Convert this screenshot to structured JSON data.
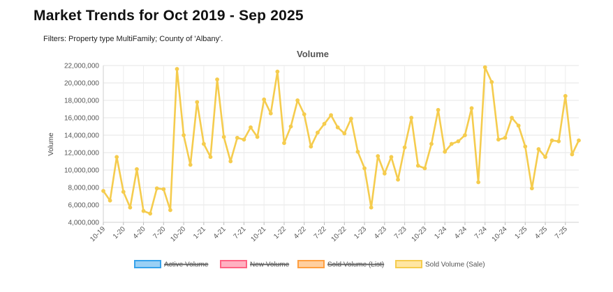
{
  "header": {
    "title": "Market Trends for Oct 2019 - Sep 2025",
    "filters": "Filters: Property type MultiFamily; County of 'Albany'."
  },
  "chart_data": {
    "type": "line",
    "title": "Volume",
    "xlabel": "",
    "ylabel": "Volume",
    "ylim": [
      4000000,
      22000000
    ],
    "yticks": [
      4000000,
      6000000,
      8000000,
      10000000,
      12000000,
      14000000,
      16000000,
      18000000,
      20000000,
      22000000
    ],
    "ytick_labels": [
      "4,000,000",
      "6,000,000",
      "8,000,000",
      "10,000,000",
      "12,000,000",
      "14,000,000",
      "16,000,000",
      "18,000,000",
      "20,000,000",
      "22,000,000"
    ],
    "x_tick_labels": [
      "10-19",
      "1-20",
      "4-20",
      "7-20",
      "10-20",
      "1-21",
      "4-21",
      "7-21",
      "10-21",
      "1-22",
      "4-22",
      "7-22",
      "10-22",
      "1-23",
      "4-23",
      "7-23",
      "10-23",
      "1-24",
      "4-24",
      "7-24",
      "10-24",
      "1-25",
      "4-25",
      "7-25"
    ],
    "grid": true,
    "legend_position": "bottom",
    "series": [
      {
        "name": "Active Volume",
        "hidden": true,
        "color": "#36a2eb",
        "fill": "#9ad0f5",
        "values": []
      },
      {
        "name": "New Volume",
        "hidden": true,
        "color": "#ff6384",
        "fill": "#ffb1c1",
        "values": []
      },
      {
        "name": "Sold Volume (List)",
        "hidden": true,
        "color": "#ff9f40",
        "fill": "#ffcf9f",
        "values": []
      },
      {
        "name": "Sold Volume (Sale)",
        "hidden": false,
        "color": "#f5cc4e",
        "fill": "#ffe6a2",
        "values": [
          7600000,
          6500000,
          11500000,
          7500000,
          5700000,
          10100000,
          5300000,
          5000000,
          7900000,
          7800000,
          5400000,
          21600000,
          14000000,
          10600000,
          17800000,
          13000000,
          11500000,
          20400000,
          13800000,
          11000000,
          13700000,
          13500000,
          14900000,
          13800000,
          18100000,
          16500000,
          21300000,
          13100000,
          15000000,
          18000000,
          16400000,
          12700000,
          14300000,
          15300000,
          16300000,
          14900000,
          14200000,
          15900000,
          12100000,
          10200000,
          5700000,
          11600000,
          9600000,
          11500000,
          8900000,
          12600000,
          16000000,
          10500000,
          10200000,
          13000000,
          16900000,
          12100000,
          13000000,
          13300000,
          14000000,
          17100000,
          8600000,
          21800000,
          20100000,
          13500000,
          13700000,
          16000000,
          15100000,
          12700000,
          7900000,
          12400000,
          11500000,
          13400000,
          13300000,
          18500000,
          11800000,
          13400000
        ]
      }
    ]
  }
}
